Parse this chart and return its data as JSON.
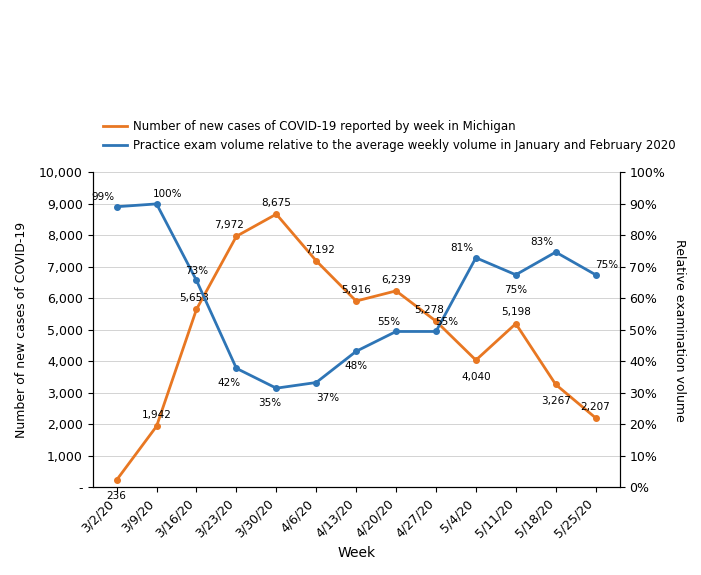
{
  "weeks": [
    "3/2/20",
    "3/9/20",
    "3/16/20",
    "3/23/20",
    "3/30/20",
    "4/6/20",
    "4/13/20",
    "4/20/20",
    "4/27/20",
    "5/4/20",
    "5/11/20",
    "5/18/20",
    "5/25/20"
  ],
  "covid_cases": [
    236,
    1942,
    5653,
    7972,
    8675,
    7192,
    5916,
    6239,
    5278,
    4040,
    5198,
    3267,
    2207
  ],
  "exam_pct": [
    0.99,
    1.0,
    0.73,
    0.42,
    0.35,
    0.37,
    0.48,
    0.55,
    0.55,
    0.81,
    0.75,
    0.83,
    0.75
  ],
  "exam_labels": [
    "99%",
    "100%",
    "73%",
    "42%",
    "35%",
    "37%",
    "48%",
    "55%",
    "55%",
    "81%",
    "75%",
    "83%",
    "75%"
  ],
  "covid_labels": [
    "236",
    "1,942",
    "5,653",
    "7,972",
    "8,675",
    "7,192",
    "5,916",
    "6,239",
    "5,278",
    "4,040",
    "5,198",
    "3,267",
    "2,207"
  ],
  "covid_color": "#E87722",
  "exam_color": "#2E75B6",
  "legend1": "Number of new cases of COVID-19 reported by week in Michigan",
  "legend2": "Practice exam volume relative to the average weekly volume in January and February 2020",
  "xlabel": "Week",
  "ylabel_left": "Number of new cases of COVID-19",
  "ylabel_right": "Relative examination volume",
  "yticks_left": [
    0,
    1000,
    2000,
    3000,
    4000,
    5000,
    6000,
    7000,
    8000,
    9000,
    10000
  ],
  "ytick_labels_left": [
    "-",
    "1,000",
    "2,000",
    "3,000",
    "4,000",
    "5,000",
    "6,000",
    "7,000",
    "8,000",
    "9,000",
    "10,000"
  ],
  "ytick_labels_right": [
    "0%",
    "10%",
    "20%",
    "30%",
    "40%",
    "50%",
    "60%",
    "70%",
    "80%",
    "90%",
    "100%"
  ]
}
